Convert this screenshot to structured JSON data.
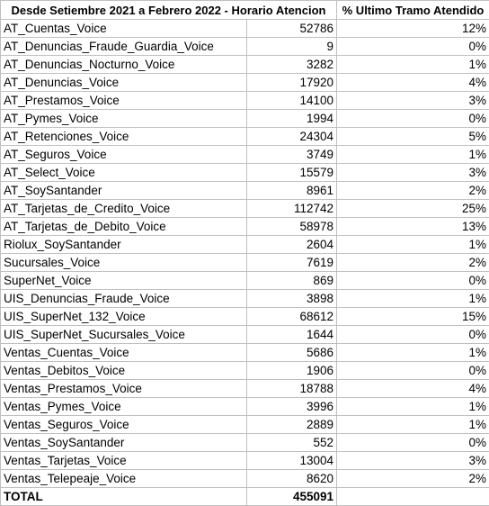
{
  "header": {
    "col1": "Desde Setiembre 2021 a Febrero 2022 - Horario Atencion",
    "col2": "",
    "col3": "% Ultimo Tramo Atendido"
  },
  "rows": [
    {
      "name": "AT_Cuentas_Voice",
      "value": "52786",
      "pct": "12%"
    },
    {
      "name": "AT_Denuncias_Fraude_Guardia_Voice",
      "value": "9",
      "pct": "0%"
    },
    {
      "name": "AT_Denuncias_Nocturno_Voice",
      "value": "3282",
      "pct": "1%"
    },
    {
      "name": "AT_Denuncias_Voice",
      "value": "17920",
      "pct": "4%"
    },
    {
      "name": "AT_Prestamos_Voice",
      "value": "14100",
      "pct": "3%"
    },
    {
      "name": "AT_Pymes_Voice",
      "value": "1994",
      "pct": "0%"
    },
    {
      "name": "AT_Retenciones_Voice",
      "value": "24304",
      "pct": "5%"
    },
    {
      "name": "AT_Seguros_Voice",
      "value": "3749",
      "pct": "1%"
    },
    {
      "name": "AT_Select_Voice",
      "value": "15579",
      "pct": "3%"
    },
    {
      "name": "AT_SoySantander",
      "value": "8961",
      "pct": "2%"
    },
    {
      "name": "AT_Tarjetas_de_Credito_Voice",
      "value": "112742",
      "pct": "25%"
    },
    {
      "name": "AT_Tarjetas_de_Debito_Voice",
      "value": "58978",
      "pct": "13%"
    },
    {
      "name": "Riolux_SoySantander",
      "value": "2604",
      "pct": "1%"
    },
    {
      "name": "Sucursales_Voice",
      "value": "7619",
      "pct": "2%"
    },
    {
      "name": "SuperNet_Voice",
      "value": "869",
      "pct": "0%"
    },
    {
      "name": "UIS_Denuncias_Fraude_Voice",
      "value": "3898",
      "pct": "1%"
    },
    {
      "name": "UIS_SuperNet_132_Voice",
      "value": "68612",
      "pct": "15%"
    },
    {
      "name": "UIS_SuperNet_Sucursales_Voice",
      "value": "1644",
      "pct": "0%"
    },
    {
      "name": "Ventas_Cuentas_Voice",
      "value": "5686",
      "pct": "1%"
    },
    {
      "name": "Ventas_Debitos_Voice",
      "value": "1906",
      "pct": "0%"
    },
    {
      "name": "Ventas_Prestamos_Voice",
      "value": "18788",
      "pct": "4%"
    },
    {
      "name": "Ventas_Pymes_Voice",
      "value": "3996",
      "pct": "1%"
    },
    {
      "name": "Ventas_Seguros_Voice",
      "value": "2889",
      "pct": "1%"
    },
    {
      "name": "Ventas_SoySantander",
      "value": "552",
      "pct": "0%"
    },
    {
      "name": "Ventas_Tarjetas_Voice",
      "value": "13004",
      "pct": "3%"
    },
    {
      "name": "Ventas_Telepeaje_Voice",
      "value": "8620",
      "pct": "2%"
    }
  ],
  "total": {
    "label": "TOTAL",
    "value": "455091",
    "pct": ""
  }
}
